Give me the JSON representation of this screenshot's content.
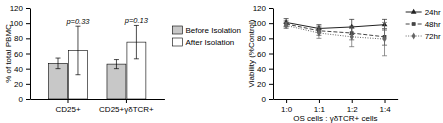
{
  "chart_data": [
    {
      "type": "bar",
      "categories": [
        "CD25+",
        "CD25+γδTCR+"
      ],
      "series": [
        {
          "name": "Before Isolation",
          "color": "#c8c8c8",
          "values": [
            47,
            46
          ],
          "errors": [
            7,
            6
          ]
        },
        {
          "name": "After Isolation",
          "color": "#ffffff",
          "values": [
            64,
            75
          ],
          "errors": [
            32,
            22
          ]
        }
      ],
      "annotations": [
        "p=0.33",
        "p=0.13"
      ],
      "ylabel": "% of total PBMC",
      "ylim": [
        0,
        120
      ],
      "yticks": [
        0,
        20,
        40,
        60,
        80,
        100,
        120
      ],
      "legend": "right",
      "grid": false
    },
    {
      "type": "line",
      "categories": [
        "1:0",
        "1:1",
        "1:2",
        "1:4"
      ],
      "xlabel": "OS cells : γδTCR+ cells",
      "ylabel": "Viability (%Control)",
      "ylim": [
        0,
        120
      ],
      "yticks": [
        0,
        20,
        40,
        60,
        80,
        100,
        120
      ],
      "series": [
        {
          "name": "24hr",
          "color": "#222222",
          "values": [
            101,
            93,
            95,
            98
          ],
          "errors": [
            5,
            5,
            10,
            7
          ],
          "line_style": "solid",
          "marker": "triangle"
        },
        {
          "name": "48hr",
          "color": "#444444",
          "values": [
            99,
            90,
            87,
            82
          ],
          "errors": [
            4,
            6,
            9,
            11
          ],
          "line_style": "dashed",
          "marker": "square"
        },
        {
          "name": "72hr",
          "color": "#666666",
          "values": [
            97,
            87,
            82,
            79
          ],
          "errors": [
            4,
            7,
            13,
            22
          ],
          "line_style": "dotted",
          "marker": "diamond"
        }
      ],
      "legend": "right",
      "grid": false
    }
  ]
}
